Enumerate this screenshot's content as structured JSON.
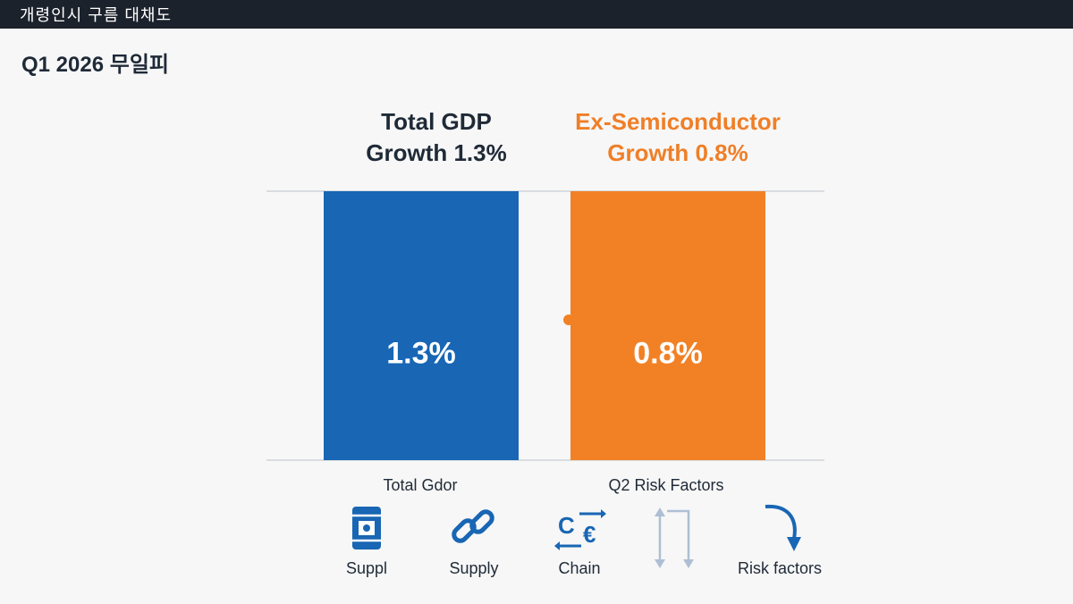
{
  "window": {
    "title": "개령인시 구름 대채도"
  },
  "page": {
    "title": "Q1 2026 무일피"
  },
  "headlines": {
    "total": {
      "line1": "Total GDP",
      "line2": "Growth 1.3%"
    },
    "ex_semi": {
      "line1": "Ex-Semiconductor",
      "line2": "Growth 0.8%"
    }
  },
  "colors": {
    "total": "#1866b4",
    "ex_semi": "#f28125",
    "accent_dot": "#f28125"
  },
  "chart_data": {
    "type": "bar",
    "title": "Q1 2026 무일피",
    "categories": [
      "Total GDP",
      "Ex-Semiconductor"
    ],
    "values": [
      1.3,
      0.8
    ],
    "data_labels": [
      "1.3%",
      "0.8%"
    ],
    "x_labels": [
      "Total Gdor",
      "Q2 Risk Factors"
    ],
    "ylim": [
      0,
      1.3
    ],
    "grid": true,
    "note": "Bars rendered at equal height in the source image"
  },
  "risk_factors": [
    {
      "label": "Suppl",
      "icon": "oil-barrel-icon"
    },
    {
      "label": "Supply",
      "icon": "chain-link-icon"
    },
    {
      "label": "Chain",
      "icon": "currency-exchange-icon"
    },
    {
      "label": "",
      "icon": "flow-arrows-icon"
    },
    {
      "label": "Risk factors",
      "icon": "curved-arrow-down-icon"
    }
  ]
}
